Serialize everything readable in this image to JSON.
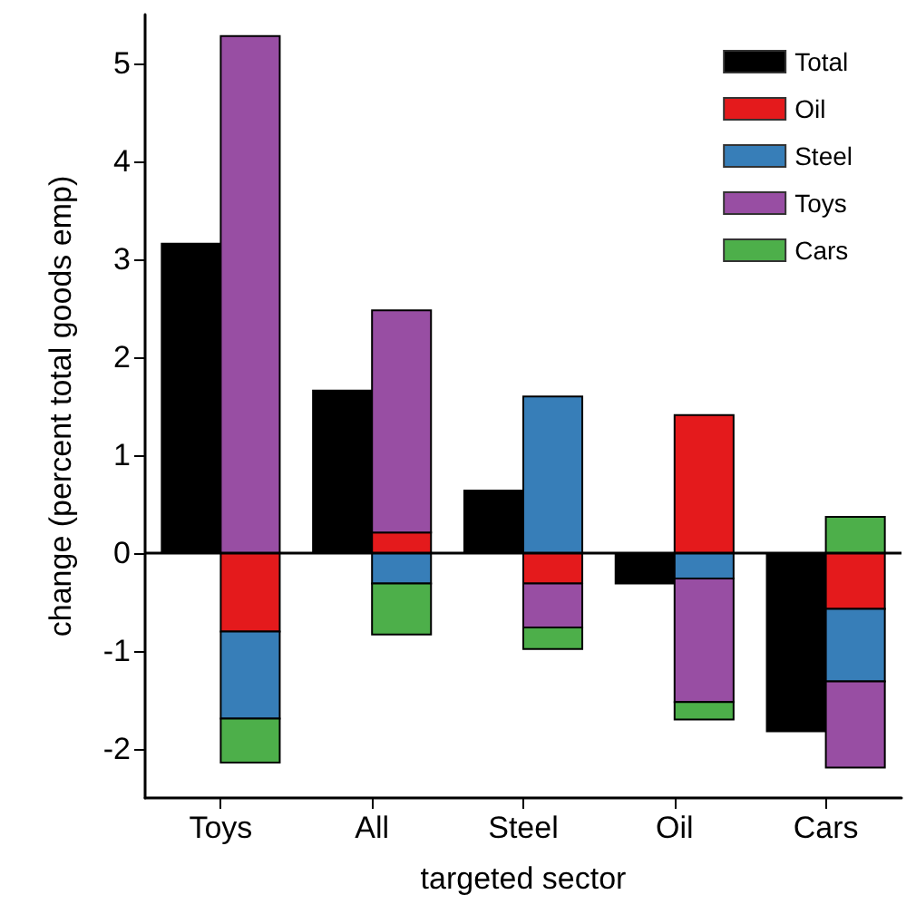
{
  "chart_data": {
    "type": "bar",
    "xlabel": "targeted sector",
    "ylabel": "change (percent total goods emp)",
    "categories": [
      "Toys",
      "All",
      "Steel",
      "Oil",
      "Cars"
    ],
    "series": [
      {
        "name": "Total",
        "color": "#000000",
        "values": [
          3.16,
          1.66,
          0.64,
          -0.31,
          -1.82
        ]
      },
      {
        "name": "Oil",
        "color": "#e41a1c",
        "values": [
          -0.8,
          0.21,
          -0.31,
          1.41,
          -0.57
        ],
        "base": [
          0,
          0,
          0,
          0,
          0
        ]
      },
      {
        "name": "Steel",
        "color": "#377eb8",
        "values": [
          -0.89,
          -0.31,
          1.6,
          -0.26,
          -0.74
        ],
        "base": [
          -0.8,
          0,
          0,
          0,
          -0.57
        ]
      },
      {
        "name": "Toys",
        "color": "#984ea3",
        "values": [
          5.28,
          2.27,
          -0.45,
          -1.26,
          -0.88
        ],
        "base": [
          0,
          0.21,
          -0.31,
          -0.26,
          -1.31
        ]
      },
      {
        "name": "Cars",
        "color": "#4daf4a",
        "values": [
          -0.45,
          -0.52,
          -0.22,
          -0.18,
          0.37
        ],
        "base": [
          -1.69,
          -0.31,
          -0.76,
          -1.52,
          0
        ]
      }
    ],
    "ylim": [
      -2.5,
      5.5
    ],
    "yticks": [
      -2,
      -1,
      0,
      1,
      2,
      3,
      4,
      5
    ],
    "ref_lines": [
      {
        "axis": "y",
        "value": 0,
        "color": "#000000"
      }
    ],
    "grid": false,
    "legend": "top right"
  }
}
